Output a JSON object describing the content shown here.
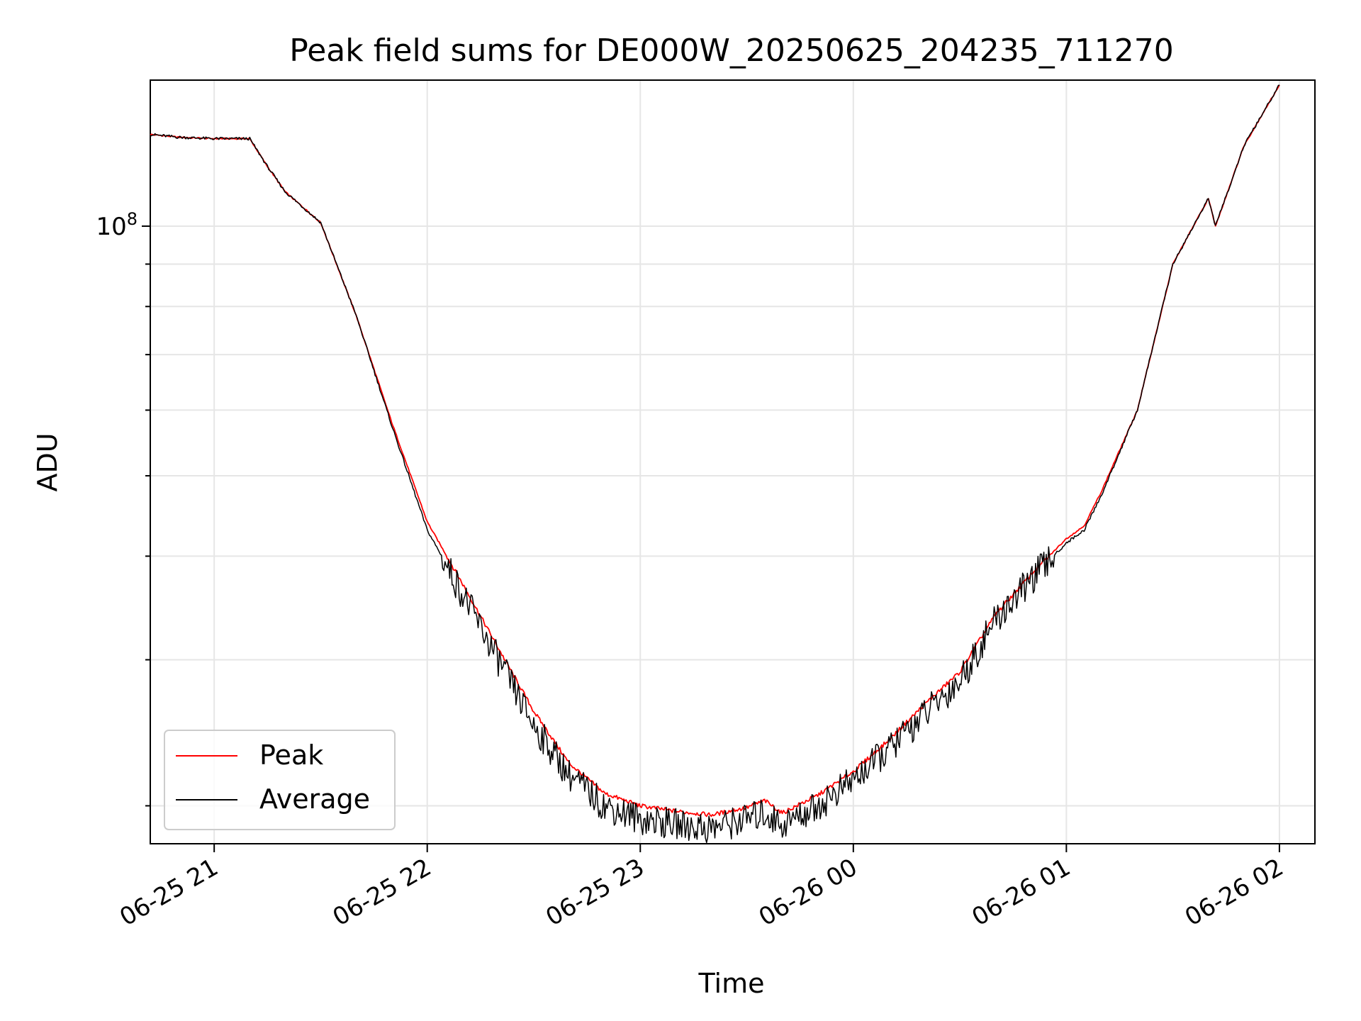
{
  "chart_data": {
    "type": "line",
    "title": "Peak field sums for DE000W_20250625_204235_711270",
    "xlabel": "Time",
    "ylabel": "ADU",
    "y_scale": "log",
    "x_range": [
      "06-25 20:42",
      "06-26 02:10"
    ],
    "ylim": [
      18000000,
      150000000
    ],
    "x_ticks": [
      "06-25 21",
      "06-25 22",
      "06-25 23",
      "06-26 00",
      "06-26 01",
      "06-26 02"
    ],
    "y_ticks": [
      {
        "label_base": "10",
        "label_exp": "8",
        "value": 100000000
      }
    ],
    "grid": true,
    "legend_position": "lower-left",
    "series": [
      {
        "name": "Peak",
        "color": "#ff0000",
        "points": [
          [
            "06-25 20:42",
            129000000
          ],
          [
            "06-25 20:50",
            128000000
          ],
          [
            "06-25 21:00",
            127500000
          ],
          [
            "06-25 21:10",
            127500000
          ],
          [
            "06-25 21:15",
            118000000
          ],
          [
            "06-25 21:20",
            110000000
          ],
          [
            "06-25 21:30",
            101000000
          ],
          [
            "06-25 21:40",
            78000000
          ],
          [
            "06-25 21:50",
            58000000
          ],
          [
            "06-25 22:00",
            44000000
          ],
          [
            "06-25 22:10",
            37000000
          ],
          [
            "06-25 22:20",
            31000000
          ],
          [
            "06-25 22:30",
            26000000
          ],
          [
            "06-25 22:40",
            22500000
          ],
          [
            "06-25 22:50",
            20700000
          ],
          [
            "06-25 23:00",
            20000000
          ],
          [
            "06-25 23:10",
            19700000
          ],
          [
            "06-25 23:20",
            19500000
          ],
          [
            "06-25 23:30",
            19900000
          ],
          [
            "06-25 23:35",
            20300000
          ],
          [
            "06-25 23:40",
            19600000
          ],
          [
            "06-25 23:50",
            20600000
          ],
          [
            "06-26 00:00",
            22000000
          ],
          [
            "06-26 00:10",
            24000000
          ],
          [
            "06-26 00:20",
            26500000
          ],
          [
            "06-26 00:30",
            29000000
          ],
          [
            "06-26 00:40",
            34000000
          ],
          [
            "06-26 00:50",
            38000000
          ],
          [
            "06-26 01:00",
            42000000
          ],
          [
            "06-26 01:05",
            43500000
          ],
          [
            "06-26 01:10",
            48000000
          ],
          [
            "06-26 01:20",
            60000000
          ],
          [
            "06-26 01:30",
            90000000
          ],
          [
            "06-26 01:40",
            108000000
          ],
          [
            "06-26 01:42",
            100000000
          ],
          [
            "06-26 01:50",
            125000000
          ],
          [
            "06-26 02:00",
            148000000
          ]
        ]
      },
      {
        "name": "Average",
        "color": "#000000",
        "points": [
          [
            "06-25 20:42",
            129000000
          ],
          [
            "06-25 20:50",
            128000000
          ],
          [
            "06-25 21:00",
            127500000
          ],
          [
            "06-25 21:10",
            127500000
          ],
          [
            "06-25 21:15",
            118000000
          ],
          [
            "06-25 21:20",
            110000000
          ],
          [
            "06-25 21:30",
            101000000
          ],
          [
            "06-25 21:40",
            78000000
          ],
          [
            "06-25 21:50",
            57500000
          ],
          [
            "06-25 22:00",
            43000000
          ],
          [
            "06-25 22:10",
            36000000
          ],
          [
            "06-25 22:20",
            30000000
          ],
          [
            "06-25 22:30",
            25000000
          ],
          [
            "06-25 22:40",
            21800000
          ],
          [
            "06-25 22:50",
            20000000
          ],
          [
            "06-25 23:00",
            19300000
          ],
          [
            "06-25 23:10",
            19000000
          ],
          [
            "06-25 23:20",
            18800000
          ],
          [
            "06-25 23:30",
            19300000
          ],
          [
            "06-25 23:35",
            19600000
          ],
          [
            "06-25 23:40",
            19000000
          ],
          [
            "06-25 23:50",
            20000000
          ],
          [
            "06-26 00:00",
            21500000
          ],
          [
            "06-26 00:10",
            23400000
          ],
          [
            "06-26 00:20",
            25800000
          ],
          [
            "06-26 00:30",
            28300000
          ],
          [
            "06-26 00:40",
            33500000
          ],
          [
            "06-26 00:50",
            37500000
          ],
          [
            "06-26 01:00",
            41500000
          ],
          [
            "06-26 01:05",
            43000000
          ],
          [
            "06-26 01:10",
            47500000
          ],
          [
            "06-26 01:20",
            60000000
          ],
          [
            "06-26 01:30",
            90000000
          ],
          [
            "06-26 01:40",
            108000000
          ],
          [
            "06-26 01:42",
            100000000
          ],
          [
            "06-26 01:50",
            125000000
          ],
          [
            "06-26 02:00",
            148000000
          ]
        ]
      }
    ]
  }
}
